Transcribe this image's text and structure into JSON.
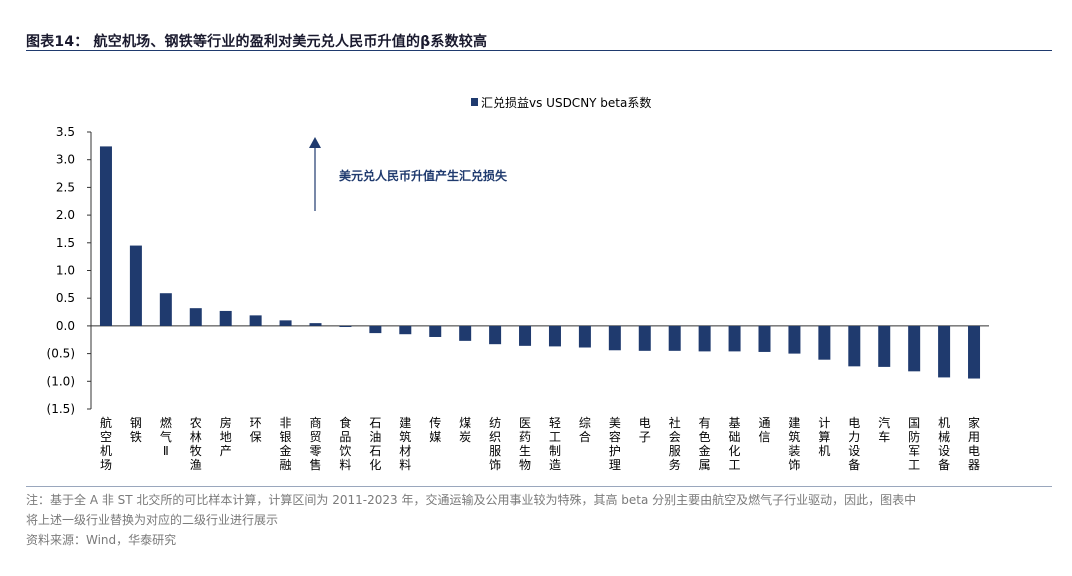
{
  "header": {
    "title": "图表14：  航空机场、钢铁等行业的盈利对美元兑人民币升值的β系数较高"
  },
  "chart_data": {
    "type": "bar",
    "legend": {
      "label": "汇兑损益vs USDCNY beta系数",
      "position": "top-center"
    },
    "annotation": "美元兑人民币升值产生汇兑损失",
    "ylim": [
      -1.5,
      3.5
    ],
    "yticks": [
      "3.5",
      "3.0",
      "2.5",
      "2.0",
      "1.5",
      "1.0",
      "0.5",
      "0.0",
      "(0.5)",
      "(1.0)",
      "(1.5)"
    ],
    "categories": [
      "航空机场",
      "钢铁",
      "燃气Ⅱ",
      "农林牧渔",
      "房地产",
      "环保",
      "非银金融",
      "商贸零售",
      "食品饮料",
      "石油石化",
      "建筑材料",
      "传媒",
      "煤炭",
      "纺织服饰",
      "医药生物",
      "轻工制造",
      "综合",
      "美容护理",
      "电子",
      "社会服务",
      "有色金属",
      "基础化工",
      "通信",
      "建筑装饰",
      "计算机",
      "电力设备",
      "汽车",
      "国防军工",
      "机械设备",
      "家用电器"
    ],
    "values": [
      3.24,
      1.45,
      0.59,
      0.32,
      0.27,
      0.19,
      0.1,
      0.05,
      -0.02,
      -0.13,
      -0.15,
      -0.2,
      -0.27,
      -0.33,
      -0.36,
      -0.37,
      -0.39,
      -0.44,
      -0.45,
      -0.45,
      -0.46,
      -0.46,
      -0.47,
      -0.5,
      -0.61,
      -0.73,
      -0.74,
      -0.82,
      -0.93,
      -0.95
    ],
    "colors": {
      "bar": "#1f3a6e",
      "axis": "#333333",
      "annotation": "#1f3a6e"
    },
    "grid": false
  },
  "footer": {
    "note_line1": "注：基于全 A 非 ST 北交所的可比样本计算，计算区间为 2011-2023 年，交通运输及公用事业较为特殊，其高 beta 分别主要由航空及燃气子行业驱动，因此，图表中",
    "note_line2": "将上述一级行业替换为对应的二级行业进行展示",
    "source": "资料来源：Wind，华泰研究"
  }
}
